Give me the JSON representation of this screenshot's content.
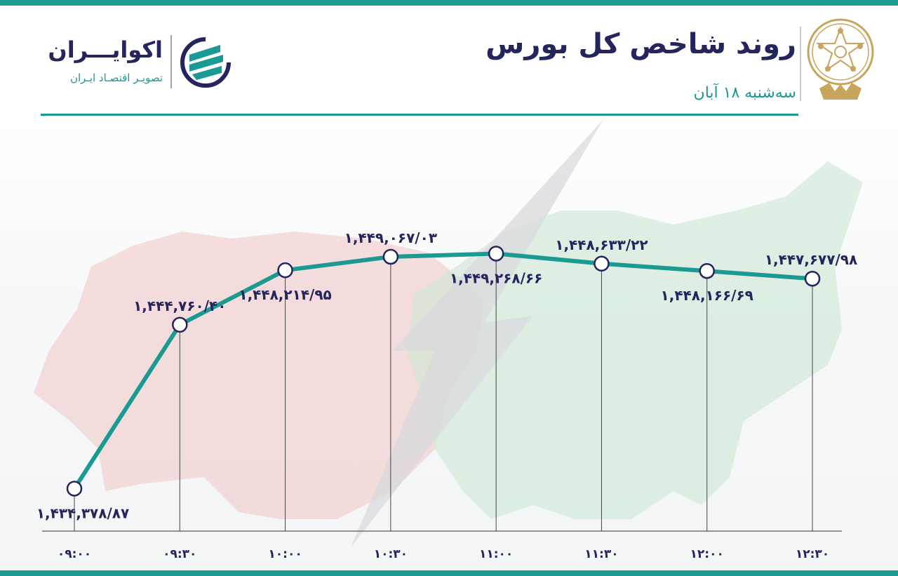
{
  "header": {
    "title": "روند شاخص کل بورس",
    "subtitle": "سه‌شنبه ۱۸ آبان"
  },
  "brand": {
    "name": "اکوایـــران",
    "tagline": "تصویـر اقتصـاد ایـران",
    "logo_icon": "ecoiran-logo-icon",
    "seal_icon": "tehran-stock-exchange-seal-icon"
  },
  "colors": {
    "accent": "#1a9a92",
    "text": "#23255c",
    "seal": "#c9a45c"
  },
  "chart_data": {
    "type": "line",
    "title": "روند شاخص کل بورس",
    "x": [
      "۰۹:۰۰",
      "۰۹:۳۰",
      "۱۰:۰۰",
      "۱۰:۳۰",
      "۱۱:۰۰",
      "۱۱:۳۰",
      "۱۲:۰۰",
      "۱۲:۳۰"
    ],
    "values": [
      1434378.87,
      1444760.4,
      1448214.95,
      1449067.03,
      1449268.66,
      1448633.22,
      1448166.69,
      1447677.98
    ],
    "labels": [
      "۱,۴۳۴,۳۷۸/۸۷",
      "۱,۴۴۴,۷۶۰/۴۰",
      "۱,۴۴۸,۲۱۴/۹۵",
      "۱,۴۴۹,۰۶۷/۰۳",
      "۱,۴۴۹,۲۶۸/۶۶",
      "۱,۴۴۸,۶۳۳/۲۲",
      "۱,۴۴۸,۱۶۶/۶۹",
      "۱,۴۴۷,۶۷۷/۹۸"
    ],
    "label_position": [
      "below",
      "above",
      "below",
      "above",
      "below",
      "above",
      "below",
      "above"
    ],
    "ylim": [
      1432000,
      1452000
    ],
    "xlabel": "",
    "ylabel": "",
    "grid": false,
    "legend": false
  }
}
